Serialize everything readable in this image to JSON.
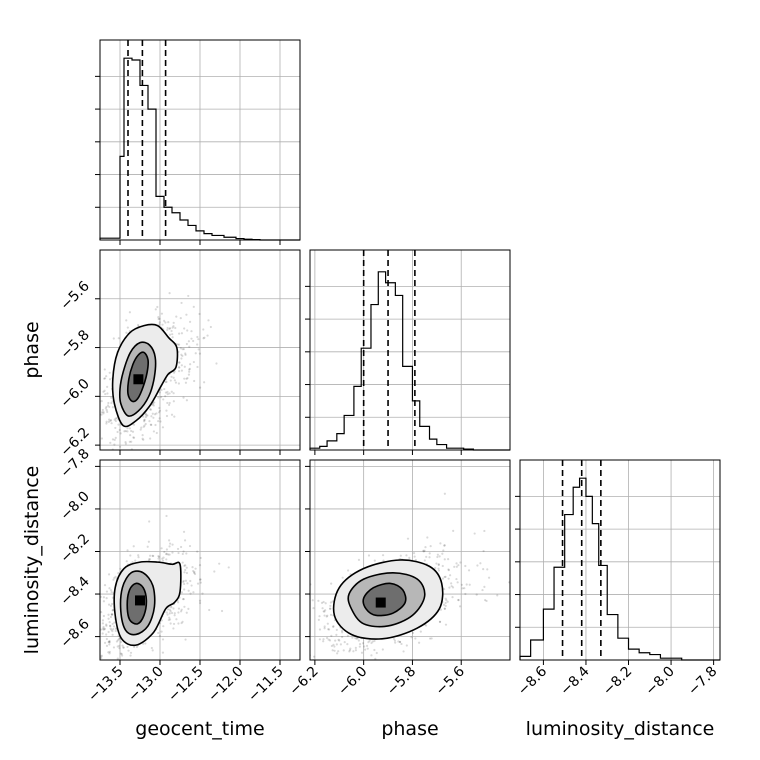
{
  "chart_data": {
    "type": "corner",
    "parameters": [
      "geocent_time",
      "phase",
      "luminosity_distance"
    ],
    "axes": {
      "geocent_time": {
        "label": "geocent_time",
        "range": [
          -13.75,
          -11.25
        ],
        "ticks": [
          -13.5,
          -13.0,
          -12.5,
          -12.0,
          -11.5
        ],
        "tick_labels": [
          "−13.5",
          "−13.0",
          "−12.5",
          "−12.0",
          "−11.5"
        ]
      },
      "phase": {
        "label": "phase",
        "range": [
          -6.22,
          -5.4
        ],
        "ticks": [
          -6.2,
          -6.0,
          -5.8,
          -5.6
        ],
        "tick_labels": [
          "−6.2",
          "−6.0",
          "−5.8",
          "−5.6"
        ]
      },
      "luminosity_distance": {
        "label": "luminosity_distance",
        "range": [
          -8.71,
          -7.77
        ],
        "ticks": [
          -8.6,
          -8.4,
          -8.2,
          -8.0,
          -7.8
        ],
        "tick_labels": [
          "−8.6",
          "−8.4",
          "−8.2",
          "−8.0",
          "−7.8"
        ]
      }
    },
    "histograms": {
      "geocent_time": {
        "bin_edges": [
          -13.75,
          -13.5,
          -13.45,
          -13.35,
          -13.25,
          -13.15,
          -13.05,
          -12.95,
          -12.85,
          -12.75,
          -12.65,
          -12.55,
          -12.45,
          -12.35,
          -12.2,
          -12.05,
          -11.95,
          -11.85,
          -11.75,
          -11.25
        ],
        "counts": [
          0.01,
          0.46,
          1.0,
          0.99,
          0.85,
          0.72,
          0.24,
          0.18,
          0.15,
          0.11,
          0.08,
          0.05,
          0.035,
          0.025,
          0.015,
          0.008,
          0.004,
          0.002,
          0.0
        ],
        "quantiles": [
          -13.4,
          -13.22,
          -12.93
        ]
      },
      "phase": {
        "bin_edges": [
          -6.22,
          -6.18,
          -6.15,
          -6.11,
          -6.08,
          -6.04,
          -6.01,
          -5.97,
          -5.94,
          -5.91,
          -5.87,
          -5.84,
          -5.8,
          -5.77,
          -5.73,
          -5.7,
          -5.66,
          -5.62,
          -5.59,
          -5.55,
          -5.4
        ],
        "counts": [
          0.01,
          0.02,
          0.05,
          0.09,
          0.19,
          0.35,
          0.56,
          0.8,
          0.98,
          0.92,
          0.85,
          0.46,
          0.27,
          0.13,
          0.06,
          0.03,
          0.01,
          0.01,
          0.005,
          0.0
        ],
        "quantiles": [
          -6.0,
          -5.9,
          -5.79
        ]
      },
      "luminosity_distance": {
        "bin_edges": [
          -8.71,
          -8.66,
          -8.6,
          -8.55,
          -8.5,
          -8.46,
          -8.43,
          -8.4,
          -8.37,
          -8.34,
          -8.3,
          -8.25,
          -8.2,
          -8.15,
          -8.1,
          -8.05,
          -7.95,
          -7.77
        ],
        "counts": [
          0.02,
          0.11,
          0.28,
          0.51,
          0.8,
          0.95,
          1.0,
          0.9,
          0.75,
          0.52,
          0.25,
          0.12,
          0.06,
          0.04,
          0.03,
          0.01,
          0.0
        ],
        "quantiles": [
          -8.51,
          -8.42,
          -8.33
        ]
      }
    },
    "pairs": [
      {
        "x": "geocent_time",
        "y": "phase",
        "mode": [
          -13.27,
          -5.93
        ],
        "contours": [
          [
            [
              -13.4,
              -5.99
            ],
            [
              -13.35,
              -6.02
            ],
            [
              -13.28,
              -6.01
            ],
            [
              -13.21,
              -5.96
            ],
            [
              -13.16,
              -5.9
            ],
            [
              -13.15,
              -5.85
            ],
            [
              -13.2,
              -5.82
            ],
            [
              -13.27,
              -5.83
            ],
            [
              -13.34,
              -5.87
            ],
            [
              -13.39,
              -5.93
            ]
          ],
          [
            [
              -13.49,
              -6.03
            ],
            [
              -13.4,
              -6.08
            ],
            [
              -13.27,
              -6.06
            ],
            [
              -13.14,
              -6.0
            ],
            [
              -13.07,
              -5.92
            ],
            [
              -13.06,
              -5.84
            ],
            [
              -13.13,
              -5.79
            ],
            [
              -13.25,
              -5.78
            ],
            [
              -13.37,
              -5.82
            ],
            [
              -13.46,
              -5.9
            ],
            [
              -13.5,
              -5.97
            ]
          ],
          [
            [
              -13.57,
              -6.03
            ],
            [
              -13.46,
              -6.12
            ],
            [
              -13.3,
              -6.1
            ],
            [
              -13.13,
              -6.04
            ],
            [
              -12.99,
              -5.96
            ],
            [
              -12.9,
              -5.91
            ],
            [
              -12.8,
              -5.88
            ],
            [
              -12.79,
              -5.8
            ],
            [
              -12.89,
              -5.76
            ],
            [
              -13.03,
              -5.71
            ],
            [
              -13.2,
              -5.71
            ],
            [
              -13.38,
              -5.74
            ],
            [
              -13.53,
              -5.82
            ],
            [
              -13.59,
              -5.93
            ]
          ]
        ]
      },
      {
        "x": "geocent_time",
        "y": "luminosity_distance",
        "mode": [
          -13.25,
          -8.43
        ],
        "contours": [
          [
            [
              -13.41,
              -8.45
            ],
            [
              -13.38,
              -8.52
            ],
            [
              -13.28,
              -8.54
            ],
            [
              -13.2,
              -8.5
            ],
            [
              -13.17,
              -8.43
            ],
            [
              -13.21,
              -8.37
            ],
            [
              -13.3,
              -8.35
            ],
            [
              -13.38,
              -8.38
            ]
          ],
          [
            [
              -13.49,
              -8.48
            ],
            [
              -13.43,
              -8.57
            ],
            [
              -13.3,
              -8.59
            ],
            [
              -13.15,
              -8.55
            ],
            [
              -13.07,
              -8.46
            ],
            [
              -13.09,
              -8.36
            ],
            [
              -13.21,
              -8.3
            ],
            [
              -13.36,
              -8.3
            ],
            [
              -13.47,
              -8.37
            ]
          ],
          [
            [
              -13.56,
              -8.5
            ],
            [
              -13.48,
              -8.61
            ],
            [
              -13.3,
              -8.64
            ],
            [
              -13.08,
              -8.58
            ],
            [
              -12.93,
              -8.47
            ],
            [
              -12.82,
              -8.44
            ],
            [
              -12.75,
              -8.39
            ],
            [
              -12.75,
              -8.26
            ],
            [
              -12.85,
              -8.26
            ],
            [
              -13.03,
              -8.25
            ],
            [
              -13.25,
              -8.25
            ],
            [
              -13.45,
              -8.28
            ],
            [
              -13.56,
              -8.37
            ]
          ]
        ]
      },
      {
        "x": "phase",
        "y": "luminosity_distance",
        "mode": [
          -5.93,
          -8.44
        ],
        "contours": [
          [
            [
              -5.99,
              -8.47
            ],
            [
              -5.95,
              -8.5
            ],
            [
              -5.88,
              -8.49
            ],
            [
              -5.83,
              -8.44
            ],
            [
              -5.84,
              -8.38
            ],
            [
              -5.89,
              -8.35
            ],
            [
              -5.96,
              -8.37
            ],
            [
              -6.0,
              -8.42
            ]
          ],
          [
            [
              -6.05,
              -8.47
            ],
            [
              -6.0,
              -8.54
            ],
            [
              -5.9,
              -8.55
            ],
            [
              -5.8,
              -8.5
            ],
            [
              -5.75,
              -8.41
            ],
            [
              -5.78,
              -8.33
            ],
            [
              -5.88,
              -8.3
            ],
            [
              -6.0,
              -8.33
            ],
            [
              -6.06,
              -8.4
            ]
          ],
          [
            [
              -6.12,
              -8.5
            ],
            [
              -6.05,
              -8.59
            ],
            [
              -5.92,
              -8.61
            ],
            [
              -5.78,
              -8.56
            ],
            [
              -5.69,
              -8.47
            ],
            [
              -5.68,
              -8.35
            ],
            [
              -5.73,
              -8.27
            ],
            [
              -5.85,
              -8.24
            ],
            [
              -6.0,
              -8.28
            ],
            [
              -6.1,
              -8.37
            ]
          ]
        ]
      }
    ],
    "grid": true
  }
}
